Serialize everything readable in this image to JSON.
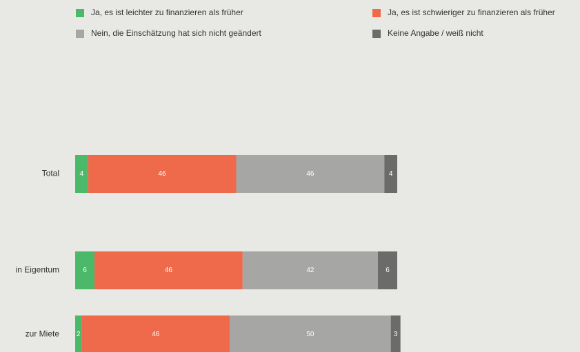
{
  "chart_data": {
    "type": "stacked-bar-horizontal",
    "categories": [
      "Total",
      "in Eigentum",
      "zur Miete"
    ],
    "series": [
      {
        "name": "Ja, es ist leichter zu finanzieren als früher",
        "color": "#4cb86a",
        "values": [
          4,
          6,
          2
        ]
      },
      {
        "name": "Ja, es ist schwieriger zu finanzieren als früher",
        "color": "#ee6a4a",
        "values": [
          46,
          46,
          46
        ]
      },
      {
        "name": "Nein, die Einschätzung hat sich nicht geändert",
        "color": "#a6a6a4",
        "values": [
          46,
          42,
          50
        ]
      },
      {
        "name": "Keine Angabe / weiß nicht",
        "color": "#6b6b69",
        "values": [
          4,
          6,
          3
        ]
      }
    ],
    "legend": "top"
  }
}
